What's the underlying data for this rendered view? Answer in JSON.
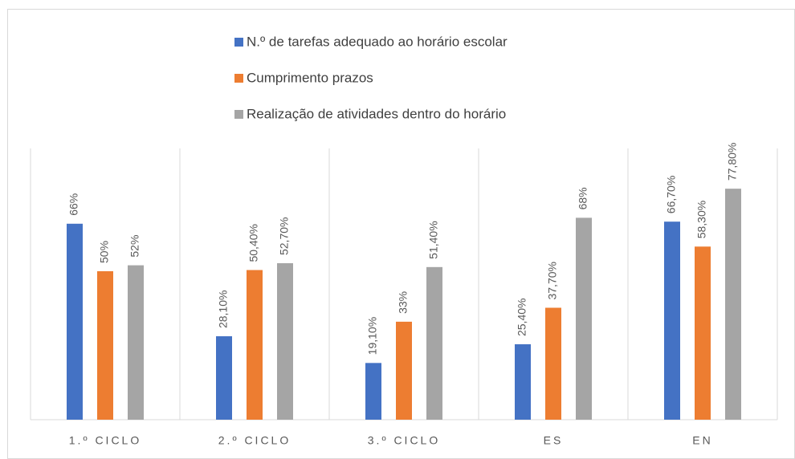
{
  "chart_data": {
    "type": "bar",
    "categories": [
      "1.º CICLO",
      "2.º CICLO",
      "3.º CICLO",
      "ES",
      "EN"
    ],
    "series": [
      {
        "name": "N.º de tarefas adequado ao horário escolar",
        "color": "#4472c4",
        "values": [
          66,
          28.1,
          19.1,
          25.4,
          66.7
        ],
        "value_labels": [
          "66%",
          "28,10%",
          "19,10%",
          "25,40%",
          "66,70%"
        ]
      },
      {
        "name": "Cumprimento prazos",
        "color": "#ed7d31",
        "values": [
          50,
          50.4,
          33,
          37.7,
          58.3
        ],
        "value_labels": [
          "50%",
          "50,40%",
          "33%",
          "37,70%",
          "58,30%"
        ]
      },
      {
        "name": "Realização de atividades dentro do horário",
        "color": "#a5a5a5",
        "values": [
          52,
          52.7,
          51.4,
          68,
          77.8
        ],
        "value_labels": [
          "52%",
          "52,70%",
          "51,40%",
          "68%",
          "77,80%"
        ]
      }
    ],
    "legend": "top"
  }
}
